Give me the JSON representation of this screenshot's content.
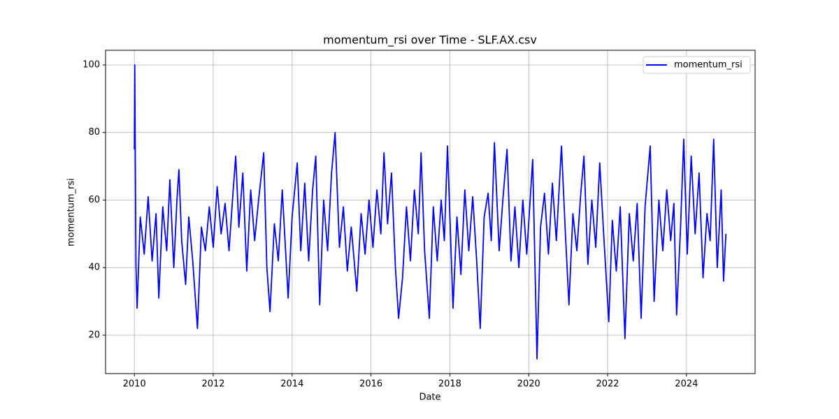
{
  "chart_data": {
    "type": "line",
    "title": "momentum_rsi over Time - SLF.AX.csv",
    "x_label": "Date",
    "y_label": "momentum_rsi",
    "x": [
      2010.0,
      2010.01,
      2010.04,
      2010.07,
      2010.15,
      2010.25,
      2010.35,
      2010.45,
      2010.55,
      2010.62,
      2010.72,
      2010.82,
      2010.9,
      2011.0,
      2011.08,
      2011.13,
      2011.2,
      2011.3,
      2011.38,
      2011.48,
      2011.6,
      2011.7,
      2011.8,
      2011.9,
      2012.0,
      2012.1,
      2012.2,
      2012.3,
      2012.4,
      2012.5,
      2012.57,
      2012.65,
      2012.75,
      2012.85,
      2012.95,
      2013.05,
      2013.15,
      2013.28,
      2013.36,
      2013.44,
      2013.55,
      2013.65,
      2013.75,
      2013.9,
      2014.0,
      2014.13,
      2014.22,
      2014.32,
      2014.42,
      2014.52,
      2014.6,
      2014.7,
      2014.8,
      2014.9,
      2015.0,
      2015.09,
      2015.2,
      2015.3,
      2015.4,
      2015.5,
      2015.64,
      2015.75,
      2015.85,
      2015.95,
      2016.05,
      2016.15,
      2016.25,
      2016.33,
      2016.42,
      2016.52,
      2016.62,
      2016.7,
      2016.8,
      2016.9,
      2017.0,
      2017.1,
      2017.2,
      2017.27,
      2017.36,
      2017.48,
      2017.58,
      2017.68,
      2017.78,
      2017.86,
      2017.94,
      2018.08,
      2018.18,
      2018.28,
      2018.38,
      2018.48,
      2018.58,
      2018.68,
      2018.77,
      2018.87,
      2018.97,
      2019.05,
      2019.13,
      2019.25,
      2019.35,
      2019.45,
      2019.55,
      2019.65,
      2019.75,
      2019.85,
      2019.95,
      2020.1,
      2020.21,
      2020.3,
      2020.4,
      2020.5,
      2020.6,
      2020.7,
      2020.83,
      2020.93,
      2021.02,
      2021.12,
      2021.22,
      2021.32,
      2021.4,
      2021.5,
      2021.6,
      2021.7,
      2021.8,
      2021.9,
      2022.03,
      2022.12,
      2022.22,
      2022.32,
      2022.44,
      2022.55,
      2022.65,
      2022.75,
      2022.85,
      2022.95,
      2023.08,
      2023.18,
      2023.3,
      2023.4,
      2023.5,
      2023.6,
      2023.68,
      2023.75,
      2023.85,
      2023.93,
      2024.02,
      2024.12,
      2024.22,
      2024.32,
      2024.42,
      2024.52,
      2024.6,
      2024.69,
      2024.78,
      2024.88,
      2024.94,
      2025.0
    ],
    "series": [
      {
        "name": "momentum_rsi",
        "color": "#0000ff",
        "values": [
          75,
          100,
          41,
          28,
          55,
          44,
          61,
          42,
          56,
          31,
          58,
          45,
          66,
          40,
          60,
          69,
          48,
          35,
          55,
          42,
          22,
          52,
          45,
          58,
          46,
          64,
          50,
          59,
          45,
          62,
          73,
          52,
          68,
          39,
          63,
          48,
          60,
          74,
          40,
          27,
          53,
          42,
          63,
          31,
          55,
          71,
          45,
          65,
          42,
          63,
          73,
          29,
          60,
          45,
          68,
          80,
          46,
          58,
          39,
          52,
          33,
          56,
          44,
          60,
          46,
          63,
          50,
          74,
          53,
          68,
          40,
          25,
          37,
          58,
          42,
          63,
          50,
          74,
          45,
          25,
          58,
          42,
          60,
          48,
          76,
          28,
          55,
          38,
          63,
          45,
          61,
          42,
          22,
          55,
          62,
          48,
          77,
          45,
          61,
          75,
          42,
          58,
          40,
          60,
          44,
          72,
          13,
          52,
          62,
          44,
          65,
          48,
          76,
          50,
          29,
          56,
          45,
          62,
          73,
          41,
          60,
          46,
          71,
          50,
          24,
          54,
          39,
          58,
          19,
          56,
          42,
          59,
          25,
          58,
          76,
          30,
          60,
          45,
          63,
          48,
          59,
          26,
          52,
          78,
          44,
          73,
          50,
          68,
          37,
          56,
          48,
          78,
          40,
          63,
          36,
          50
        ]
      }
    ],
    "xlim": [
      2009.27,
      2025.74
    ],
    "ylim": [
      8.63,
      104.34
    ],
    "xticks": [
      2010,
      2012,
      2014,
      2016,
      2018,
      2020,
      2022,
      2024
    ],
    "yticks": [
      20,
      40,
      60,
      80,
      100
    ],
    "grid": true,
    "legend": "upper-right"
  }
}
